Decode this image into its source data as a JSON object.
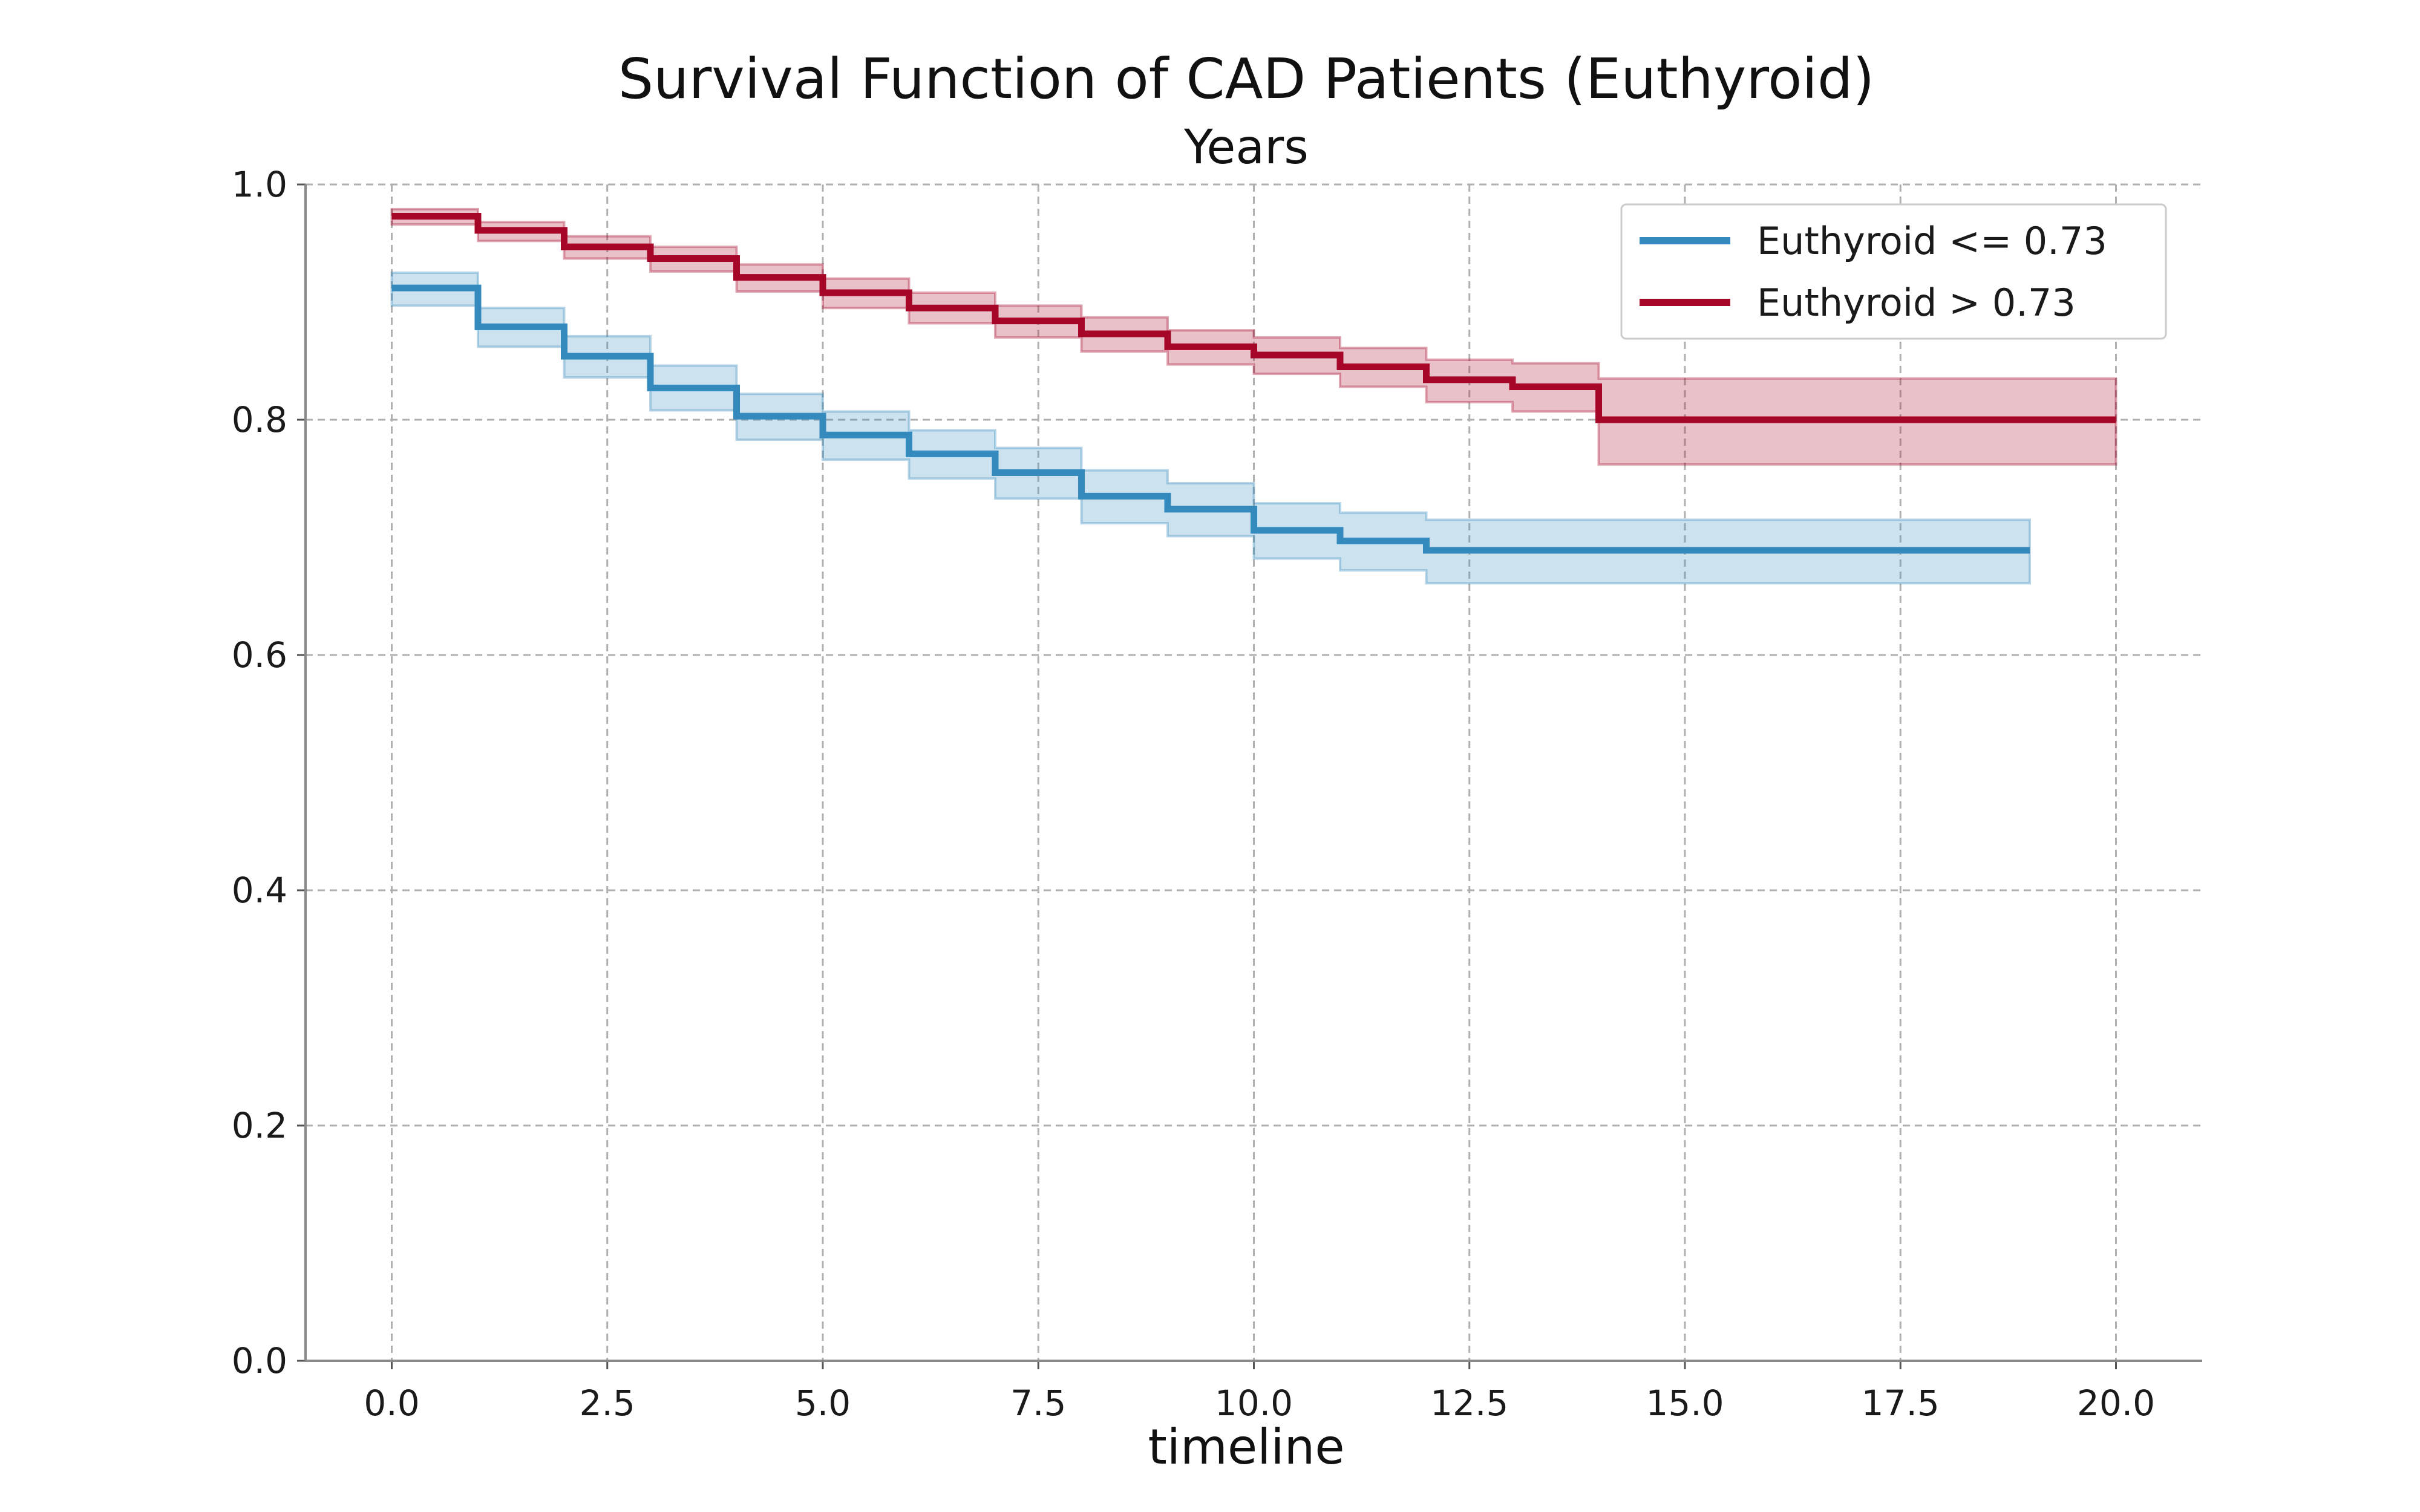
{
  "chart_data": {
    "type": "line",
    "title": "Survival Function of CAD Patients (Euthyroid)",
    "subtitle": "Years",
    "xlabel": "timeline",
    "ylabel": "",
    "xlim": [
      -1.0,
      21.0
    ],
    "ylim": [
      0.0,
      1.0
    ],
    "xticks": [
      0.0,
      2.5,
      5.0,
      7.5,
      10.0,
      12.5,
      15.0,
      17.5,
      20.0
    ],
    "xtick_labels": [
      "0.0",
      "2.5",
      "5.0",
      "7.5",
      "10.0",
      "12.5",
      "15.0",
      "17.5",
      "20.0"
    ],
    "yticks": [
      0.0,
      0.2,
      0.4,
      0.6,
      0.8,
      1.0
    ],
    "ytick_labels": [
      "0.0",
      "0.2",
      "0.4",
      "0.6",
      "0.8",
      "1.0"
    ],
    "grid": true,
    "legend_position": "top-right",
    "series": [
      {
        "name": "Euthyroid <= 0.73",
        "color": "#348abd",
        "step": "post",
        "x": [
          0,
          1,
          2,
          3,
          4,
          5,
          6,
          7,
          8,
          9,
          10,
          11,
          12,
          19
        ],
        "y": [
          0.912,
          0.879,
          0.854,
          0.827,
          0.803,
          0.787,
          0.771,
          0.755,
          0.735,
          0.724,
          0.706,
          0.697,
          0.689,
          0.689
        ],
        "ci_lower": [
          0.897,
          0.862,
          0.836,
          0.808,
          0.783,
          0.766,
          0.75,
          0.733,
          0.712,
          0.701,
          0.682,
          0.672,
          0.661,
          0.661
        ],
        "ci_upper": [
          0.925,
          0.895,
          0.871,
          0.846,
          0.822,
          0.807,
          0.791,
          0.776,
          0.757,
          0.746,
          0.729,
          0.721,
          0.715,
          0.715
        ]
      },
      {
        "name": "Euthyroid > 0.73",
        "color": "#a60628",
        "step": "post",
        "x": [
          0,
          1,
          2,
          3,
          4,
          5,
          6,
          7,
          8,
          9,
          10,
          11,
          12,
          13,
          14,
          20
        ],
        "y": [
          0.973,
          0.961,
          0.947,
          0.937,
          0.921,
          0.908,
          0.895,
          0.884,
          0.873,
          0.862,
          0.855,
          0.845,
          0.834,
          0.828,
          0.8,
          0.8
        ],
        "ci_lower": [
          0.966,
          0.952,
          0.937,
          0.926,
          0.909,
          0.895,
          0.882,
          0.87,
          0.858,
          0.847,
          0.839,
          0.828,
          0.815,
          0.807,
          0.762,
          0.762
        ],
        "ci_upper": [
          0.979,
          0.968,
          0.956,
          0.947,
          0.932,
          0.92,
          0.908,
          0.897,
          0.887,
          0.876,
          0.87,
          0.861,
          0.851,
          0.848,
          0.835,
          0.835
        ]
      }
    ]
  }
}
